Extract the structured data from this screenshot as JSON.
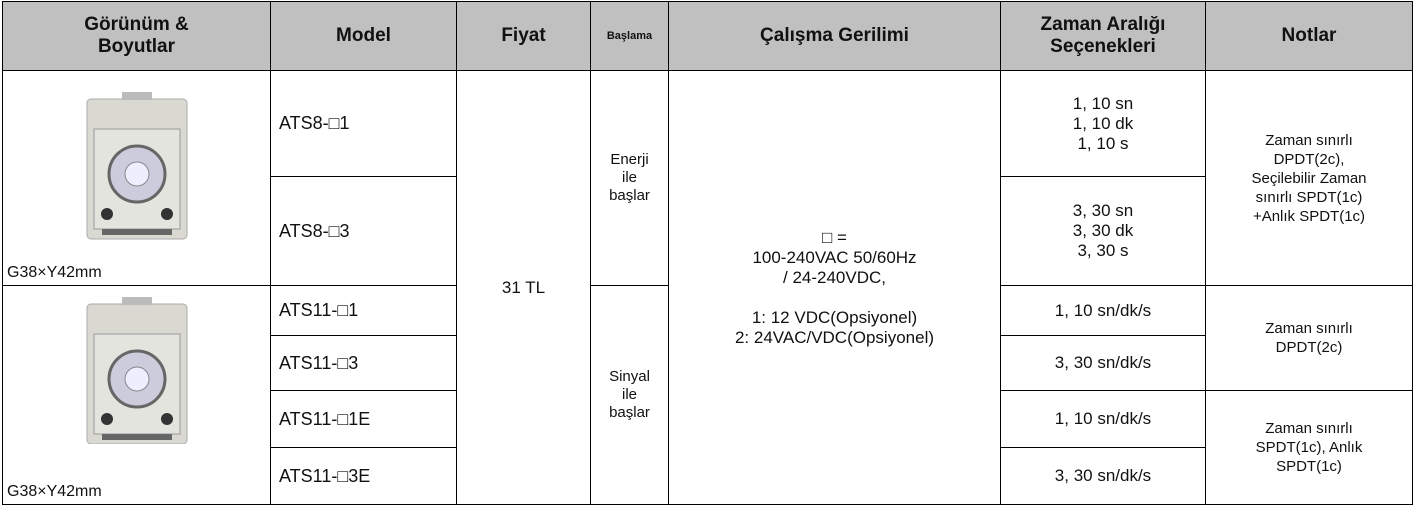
{
  "table": {
    "headers": [
      "Görünüm &\nBoyutlar",
      "Model",
      "Fiyat",
      "Başlama",
      "Çalışma Gerilimi",
      "Zaman Aralığı\nSeçenekleri",
      "Notlar"
    ],
    "price": "31 TL",
    "voltage": "□ =\n100-240VAC 50/60Hz\n/ 24-240VDC,\n\n1: 12 VDC(Opsiyonel)\n2: 24VAC/VDC(Opsiyonel)",
    "groups": [
      {
        "size": "G38×Y42mm",
        "start": "Enerji\nile\nbaşlar",
        "models": [
          {
            "model": "ATS8-□1",
            "range": "1, 10 sn\n1, 10 dk\n1, 10 s"
          },
          {
            "model": "ATS8-□3",
            "range": "3, 30 sn\n3, 30 dk\n3, 30 s"
          }
        ],
        "notes": [
          "Zaman sınırlı\nDPDT(2c),\nSeçilebilir Zaman\nsınırlı SPDT(1c)\n+Anlık SPDT(1c)"
        ]
      },
      {
        "size": "G38×Y42mm",
        "start": "Sinyal\nile\nbaşlar",
        "models": [
          {
            "model": "ATS11-□1",
            "range": "1, 10 sn/dk/s"
          },
          {
            "model": "ATS11-□3",
            "range": "3, 30 sn/dk/s"
          },
          {
            "model": "ATS11-□1E",
            "range": "1, 10 sn/dk/s"
          },
          {
            "model": "ATS11-□3E",
            "range": "3, 30 sn/dk/s"
          }
        ],
        "notes": [
          "Zaman sınırlı\nDPDT(2c)",
          "Zaman sınırlı\nSPDT(1c), Anlık\nSPDT(1c)"
        ]
      }
    ]
  }
}
